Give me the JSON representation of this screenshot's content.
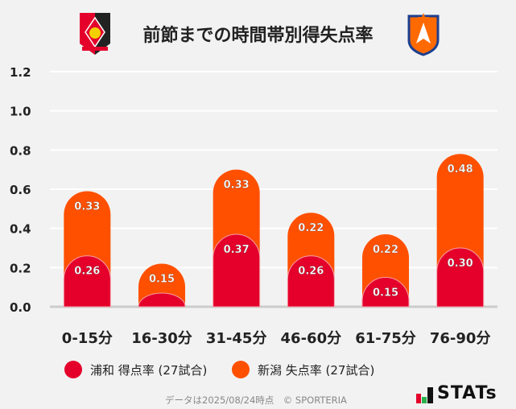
{
  "title": "前節までの時間帯別得失点率",
  "logos": {
    "home": "urawa-crest",
    "away": "niigata-crest"
  },
  "chart_data": {
    "type": "bar",
    "stacked": true,
    "categories": [
      "0-15分",
      "16-30分",
      "31-45分",
      "46-60分",
      "61-75分",
      "76-90分"
    ],
    "series": [
      {
        "name": "浦和 得点率 (27試合)",
        "color": "#e4002b",
        "values": [
          0.26,
          0.07,
          0.37,
          0.26,
          0.15,
          0.3
        ],
        "labels": [
          "0.26",
          "",
          "0.37",
          "0.26",
          "0.15",
          "0.30"
        ]
      },
      {
        "name": "新潟 失点率 (27試合)",
        "color": "#ff5000",
        "values": [
          0.33,
          0.15,
          0.33,
          0.22,
          0.22,
          0.48
        ],
        "labels": [
          "0.33",
          "0.15",
          "0.33",
          "0.22",
          "0.22",
          "0.48"
        ]
      }
    ],
    "yticks": [
      "0.0",
      "0.2",
      "0.4",
      "0.6",
      "0.8",
      "1.0",
      "1.2"
    ],
    "ylim": [
      0,
      1.2
    ],
    "grid": true,
    "legend": "bottom"
  },
  "footer": "データは2025/08/24時点　© SPORTERIA",
  "brand": "STATs"
}
